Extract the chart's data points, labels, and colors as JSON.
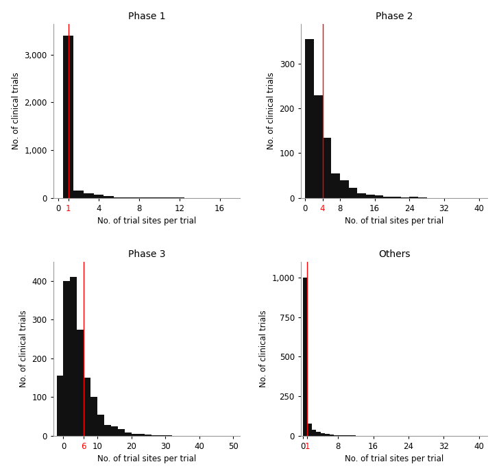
{
  "panels": [
    {
      "title": "Phase 1",
      "xlabel": "No. of trial sites per trial",
      "ylabel": "No. of clinical trials",
      "red_line": 1,
      "xlim": [
        -0.5,
        18
      ],
      "xticks": [
        0,
        1,
        4,
        8,
        12,
        16
      ],
      "xtick_labels": [
        "0",
        "1",
        "4",
        "8",
        "12",
        "16"
      ],
      "xtick_colors": [
        "black",
        "red",
        "black",
        "black",
        "black",
        "black"
      ],
      "ylim": [
        0,
        3650
      ],
      "yticks": [
        0,
        1000,
        2000,
        3000
      ],
      "bin_edges": [
        0.5,
        1.5,
        2.5,
        3.5,
        4.5,
        5.5,
        6.5,
        7.5,
        8.5,
        9.5,
        10.5,
        11.5,
        12.5,
        13.5,
        14.5,
        15.5,
        16.5,
        17.5
      ],
      "bar_heights": [
        3400,
        155,
        100,
        65,
        35,
        12,
        5,
        3,
        2,
        1,
        1,
        1,
        0,
        0,
        0,
        0,
        0
      ]
    },
    {
      "title": "Phase 2",
      "xlabel": "No. of trial sites per trial",
      "ylabel": "No. of clinical trials",
      "red_line": 4,
      "xlim": [
        -1,
        42
      ],
      "xticks": [
        0,
        4,
        8,
        16,
        24,
        32,
        40
      ],
      "xtick_labels": [
        "0",
        "4",
        "8",
        "16",
        "24",
        "32",
        "40"
      ],
      "xtick_colors": [
        "black",
        "red",
        "black",
        "black",
        "black",
        "black",
        "black"
      ],
      "ylim": [
        0,
        390
      ],
      "yticks": [
        0,
        100,
        200,
        300
      ],
      "bin_edges": [
        0,
        2,
        4,
        6,
        8,
        10,
        12,
        14,
        16,
        18,
        20,
        22,
        24,
        26,
        28,
        30,
        32,
        34,
        36,
        38,
        40
      ],
      "bar_heights": [
        355,
        230,
        135,
        55,
        40,
        22,
        10,
        7,
        5,
        3,
        2,
        1,
        2,
        1,
        0,
        0,
        0,
        0,
        0,
        0
      ]
    },
    {
      "title": "Phase 3",
      "xlabel": "No. of trial sites per trial",
      "ylabel": "No. of clinical trials",
      "red_line": 6,
      "xlim": [
        -3,
        52
      ],
      "xticks": [
        0,
        6,
        10,
        20,
        30,
        40,
        50
      ],
      "xtick_labels": [
        "0",
        "6",
        "10",
        "20",
        "30",
        "40",
        "50"
      ],
      "xtick_colors": [
        "black",
        "red",
        "black",
        "black",
        "black",
        "black",
        "black"
      ],
      "ylim": [
        0,
        450
      ],
      "yticks": [
        0,
        100,
        200,
        300,
        400
      ],
      "bin_edges": [
        -2,
        0,
        2,
        4,
        6,
        8,
        10,
        12,
        14,
        16,
        18,
        20,
        22,
        24,
        26,
        28,
        30,
        32,
        34,
        36,
        38,
        40
      ],
      "bar_heights": [
        155,
        400,
        410,
        275,
        150,
        100,
        55,
        28,
        25,
        18,
        9,
        5,
        4,
        3,
        2,
        1,
        1,
        0,
        0,
        0,
        0
      ]
    },
    {
      "title": "Others",
      "xlabel": "No. of trial sites per trial",
      "ylabel": "No. of clinical trials",
      "red_line": 1,
      "xlim": [
        -0.5,
        42
      ],
      "xticks": [
        0,
        1,
        8,
        16,
        24,
        32,
        40
      ],
      "xtick_labels": [
        "0",
        "1",
        "8",
        "16",
        "24",
        "32",
        "40"
      ],
      "xtick_colors": [
        "black",
        "red",
        "black",
        "black",
        "black",
        "black",
        "black"
      ],
      "ylim": [
        0,
        1100
      ],
      "yticks": [
        0,
        250,
        500,
        750,
        1000
      ],
      "bin_edges": [
        0,
        1,
        2,
        3,
        4,
        5,
        6,
        7,
        8,
        9,
        10,
        11,
        12,
        13,
        14,
        15,
        16,
        17,
        18,
        19,
        20,
        21,
        22,
        23,
        24,
        25,
        26
      ],
      "bar_heights": [
        1000,
        75,
        40,
        25,
        15,
        10,
        8,
        5,
        4,
        3,
        2,
        2,
        1,
        1,
        1,
        1,
        1,
        1,
        0,
        0,
        0,
        0,
        0,
        0,
        0,
        0
      ]
    }
  ],
  "bar_color": "#111111",
  "red_line_color": "#ff0000",
  "background_color": "#ffffff",
  "title_fontsize": 10,
  "label_fontsize": 8.5,
  "tick_fontsize": 8.5
}
